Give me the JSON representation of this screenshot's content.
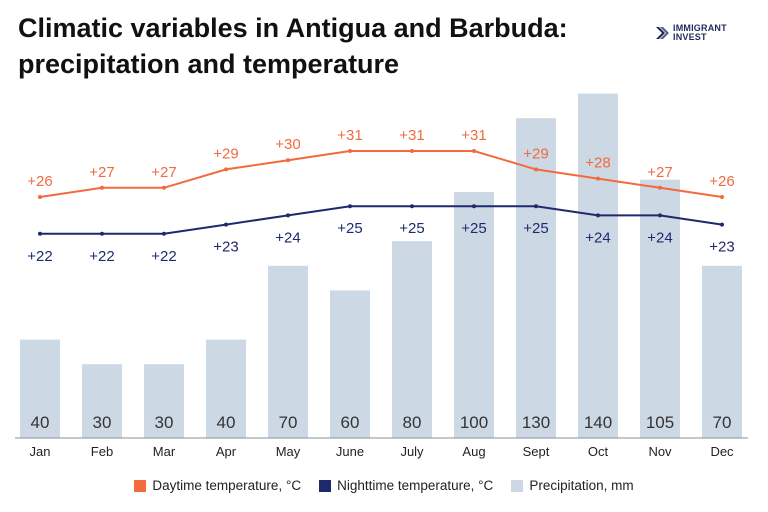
{
  "title_line1": "Climatic variables in Antigua and Barbuda:",
  "title_line2": "precipitation and temperature",
  "logo": {
    "line1": "IMMIGRANT",
    "line2": "INVEST",
    "icon": "chevron-logo-icon",
    "color": "#1f2a5c"
  },
  "colors": {
    "day": "#f26a3d",
    "night": "#1f2a6e",
    "bar": "#cdd8e5",
    "bar_label": "#333333",
    "axis_label": "#222222"
  },
  "chart_data": {
    "type": "bar",
    "categories": [
      "Jan",
      "Feb",
      "Mar",
      "Apr",
      "May",
      "June",
      "July",
      "Aug",
      "Sept",
      "Oct",
      "Nov",
      "Dec"
    ],
    "series": [
      {
        "name": "Precipitation, mm",
        "type": "bar",
        "values": [
          40,
          30,
          30,
          40,
          70,
          60,
          80,
          100,
          130,
          140,
          105,
          70
        ]
      },
      {
        "name": "Daytime temperature, °C",
        "type": "line",
        "values": [
          26,
          27,
          27,
          29,
          30,
          31,
          31,
          31,
          29,
          28,
          27,
          26
        ],
        "labels": [
          "+26",
          "+27",
          "+27",
          "+29",
          "+30",
          "+31",
          "+31",
          "+31",
          "+29",
          "+28",
          "+27",
          "+26"
        ]
      },
      {
        "name": "Nighttime temperature, °C",
        "type": "line",
        "values": [
          22,
          22,
          22,
          23,
          24,
          25,
          25,
          25,
          25,
          24,
          24,
          23
        ],
        "labels": [
          "+22",
          "+22",
          "+22",
          "+23",
          "+24",
          "+25",
          "+25",
          "+25",
          "+25",
          "+24",
          "+24",
          "+23"
        ]
      }
    ],
    "precip_labels": [
      "40",
      "30",
      "30",
      "40",
      "70",
      "60",
      "80",
      "100",
      "130",
      "140",
      "105",
      "70"
    ],
    "precip_range": [
      0,
      140
    ],
    "temp_range": [
      15,
      33
    ],
    "legend_position": "bottom",
    "grid": false
  },
  "legend": {
    "day": "Daytime temperature, °C",
    "night": "Nighttime temperature, °C",
    "precip": "Precipitation, mm"
  }
}
